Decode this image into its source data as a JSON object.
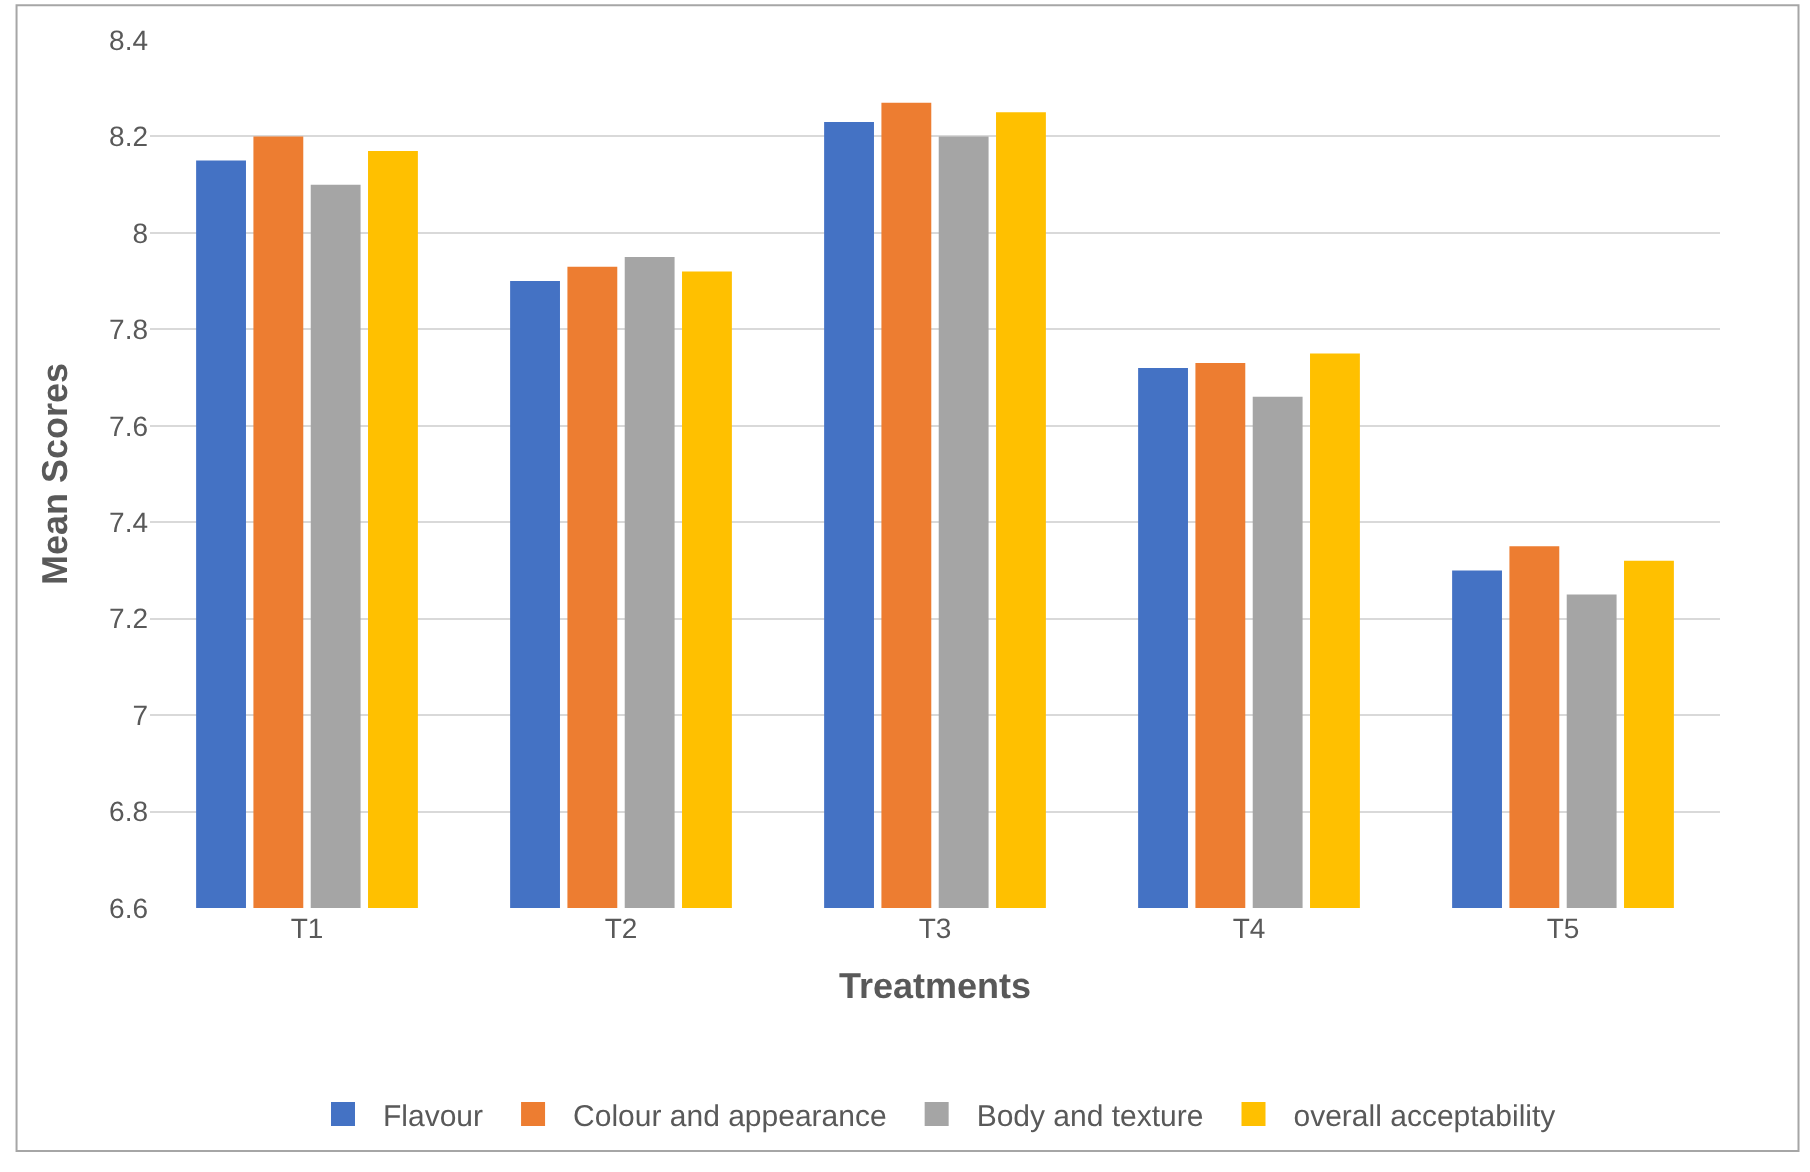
{
  "chart_data": {
    "type": "bar",
    "xlabel": "Treatments",
    "ylabel": "Mean Scores",
    "categories": [
      "T1",
      "T2",
      "T3",
      "T4",
      "T5"
    ],
    "series": [
      {
        "name": "Flavour",
        "color": "#4472c4",
        "values": [
          8.15,
          7.9,
          8.23,
          7.72,
          7.3
        ]
      },
      {
        "name": "Colour and appearance",
        "color": "#ed7d31",
        "values": [
          8.2,
          7.93,
          8.27,
          7.73,
          7.35
        ]
      },
      {
        "name": "Body and texture",
        "color": "#a5a5a5",
        "values": [
          8.1,
          7.95,
          8.2,
          7.66,
          7.25
        ]
      },
      {
        "name": "overall acceptability",
        "color": "#ffc000",
        "values": [
          8.17,
          7.92,
          8.25,
          7.75,
          7.32
        ]
      }
    ],
    "ylim": [
      6.6,
      8.4
    ],
    "yticks": [
      6.6,
      6.8,
      7,
      7.2,
      7.4,
      7.6,
      7.8,
      8,
      8.2,
      8.4
    ],
    "grid": "y",
    "legend": "bottom"
  }
}
